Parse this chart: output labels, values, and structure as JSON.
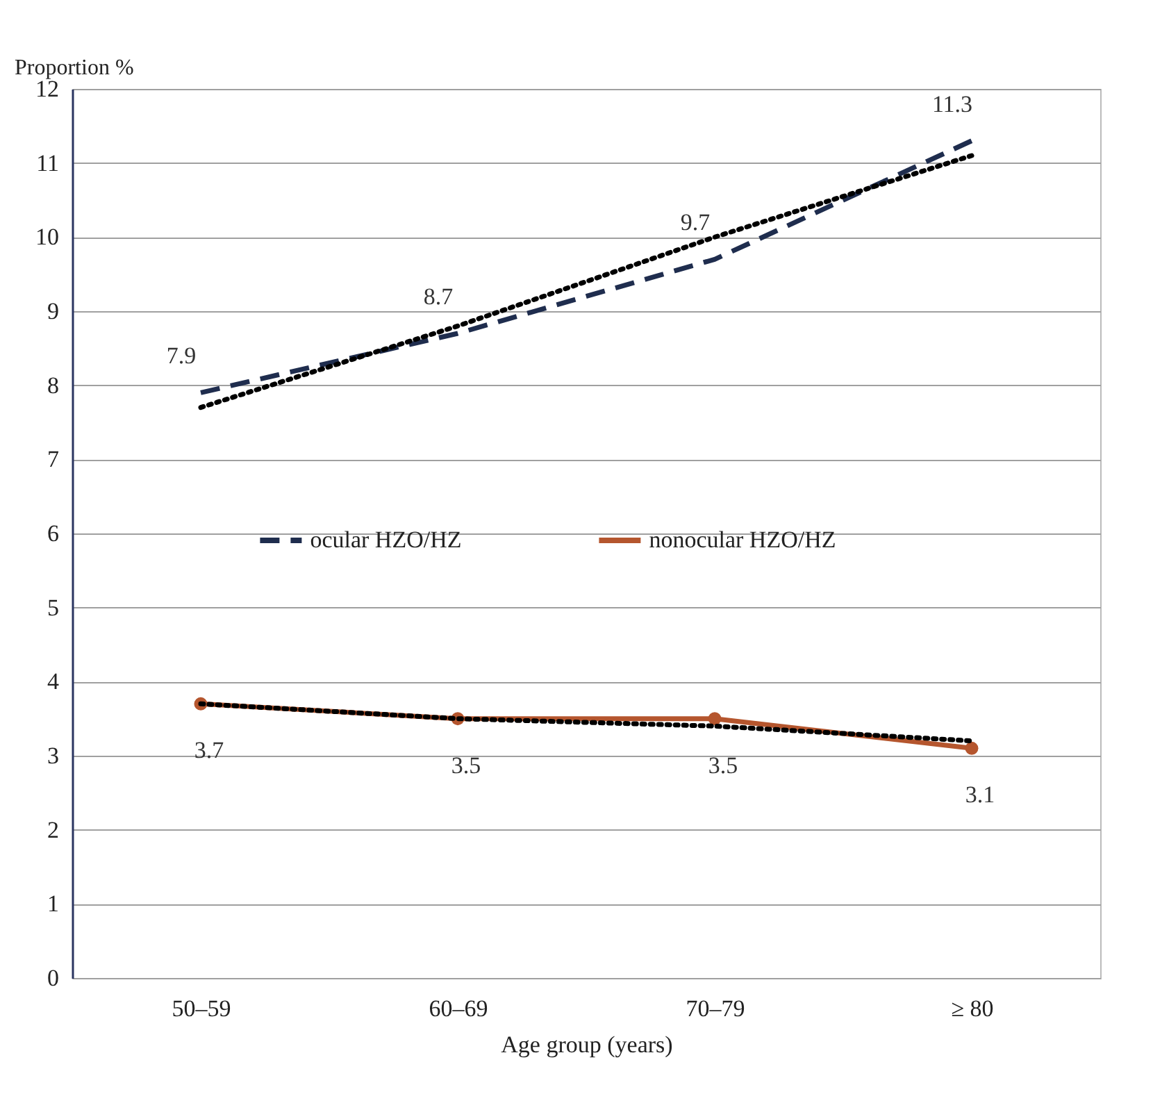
{
  "chart_data": {
    "type": "line",
    "xlabel": "Age group (years)",
    "ylabel": "Proportion %",
    "categories": [
      "50–59",
      "60–69",
      "70–79",
      "≥ 80"
    ],
    "series": [
      {
        "name": "ocular HZO/HZ",
        "color": "#1f2d4e",
        "line_style": "dashed",
        "marker": "none",
        "values": [
          7.9,
          8.7,
          9.7,
          11.3
        ],
        "value_labels": [
          "7.9",
          "8.7",
          "9.7",
          "11.3"
        ]
      },
      {
        "name": "nonocular HZO/HZ",
        "color": "#b5562e",
        "line_style": "solid",
        "marker": "circle",
        "values": [
          3.7,
          3.5,
          3.5,
          3.1
        ],
        "value_labels": [
          "3.7",
          "3.5",
          "3.5",
          "3.1"
        ]
      },
      {
        "type": "line",
        "color": "#000000",
        "line_style": "dotted",
        "marker": "none",
        "values": [
          7.7,
          8.8,
          10.0,
          11.1
        ]
      },
      {
        "type": "line",
        "color": "#000000",
        "line_style": "dotted",
        "marker": "none",
        "values": [
          3.7,
          3.5,
          3.4,
          3.2
        ]
      }
    ],
    "ylim": [
      0,
      12
    ],
    "yticks": [
      0,
      1,
      2,
      3,
      4,
      5,
      6,
      7,
      8,
      9,
      10,
      11,
      12
    ],
    "grid": "y",
    "legend": "center"
  }
}
